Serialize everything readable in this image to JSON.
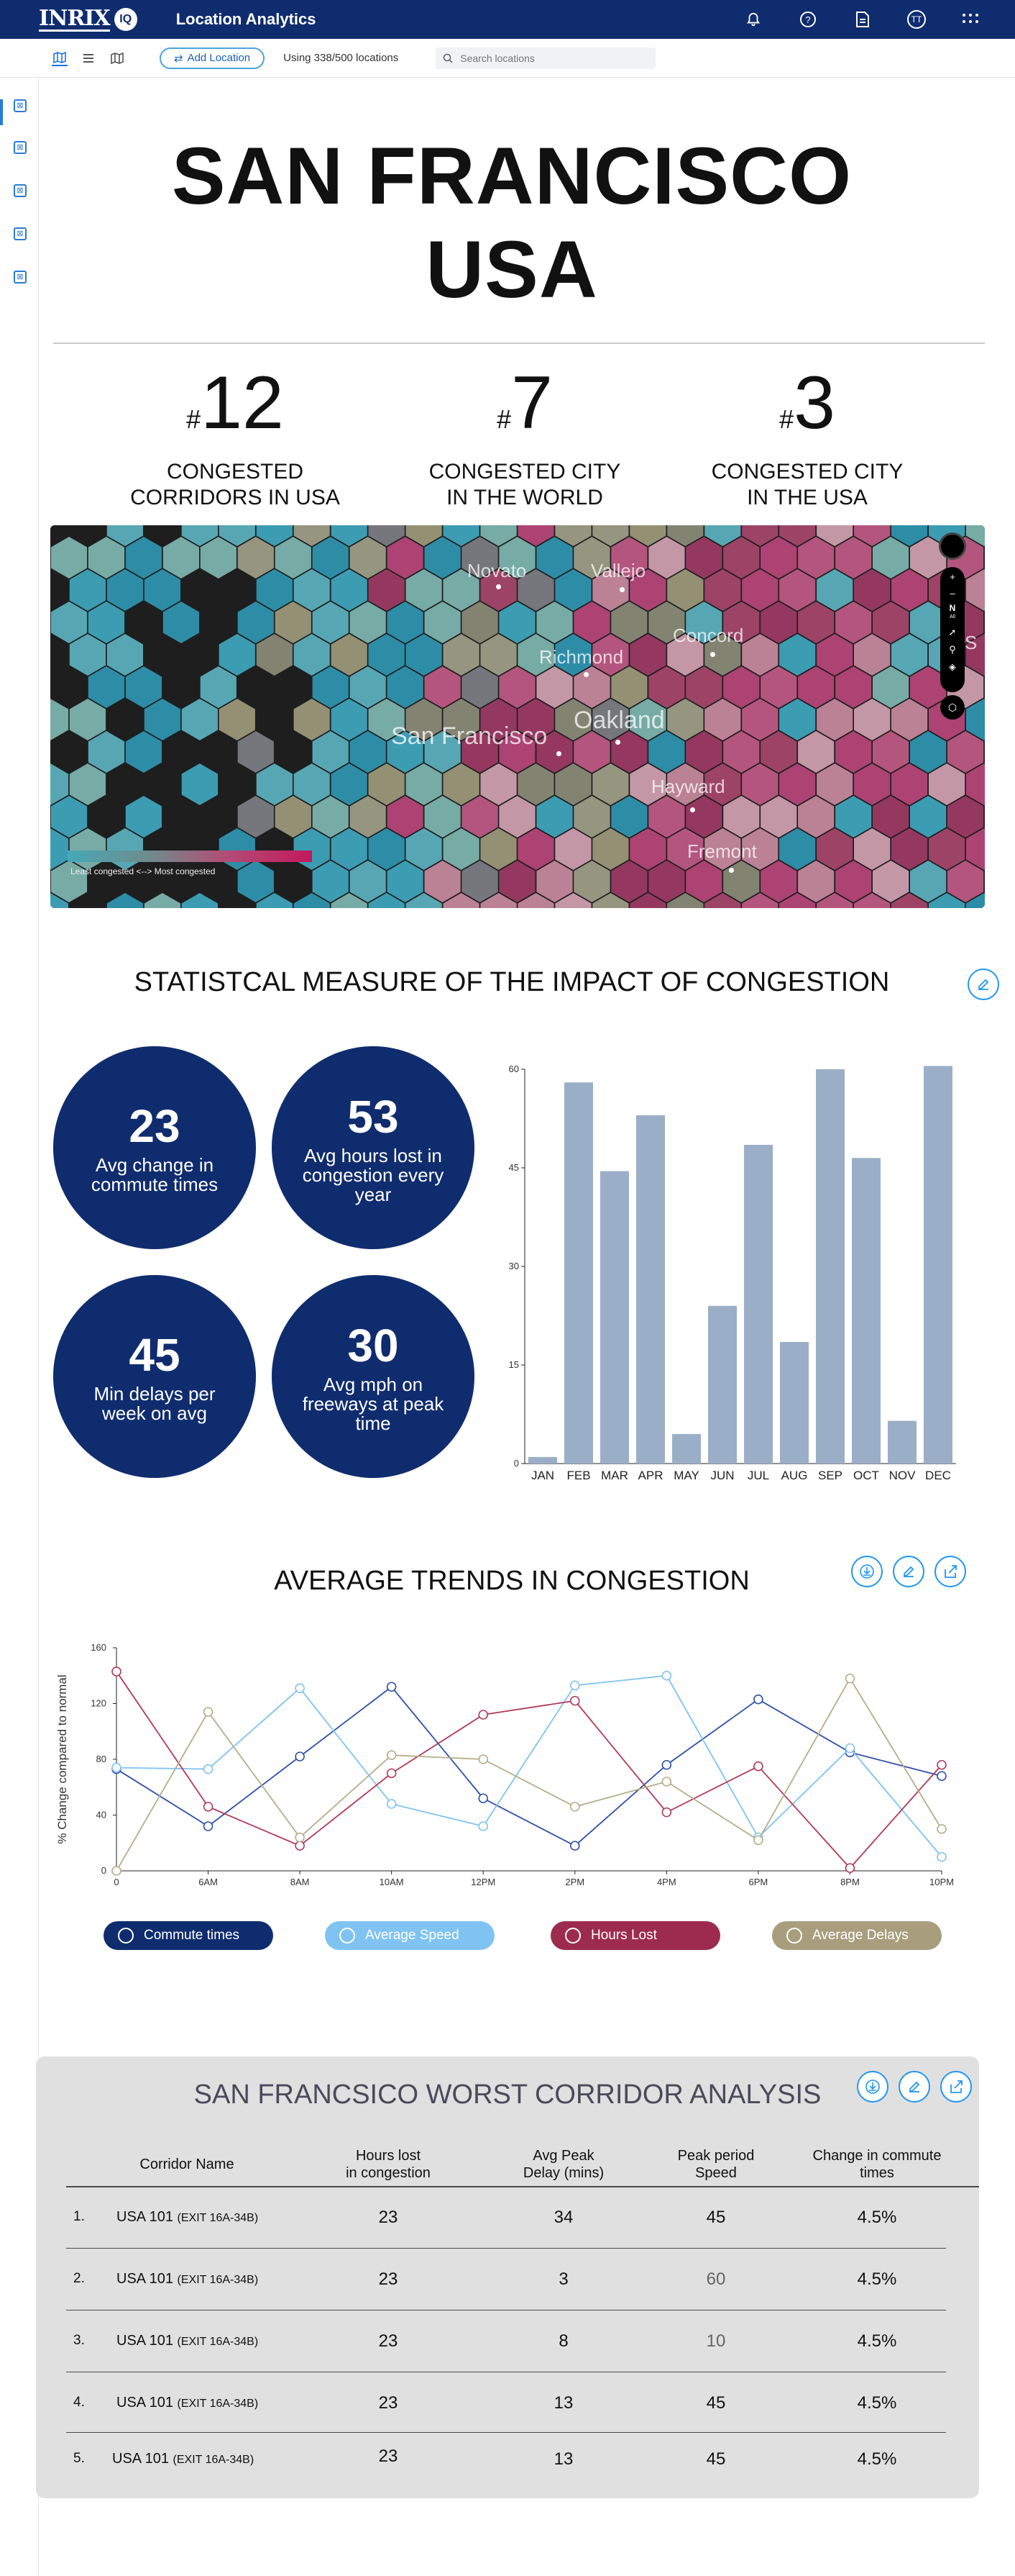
{
  "app": {
    "logo": "INRIX",
    "logo_badge": "IQ",
    "title": "Location Analytics",
    "user_initials": "TT"
  },
  "toolbar": {
    "add_location": "Add Location",
    "usage": "Using 338/500 locations",
    "search_placeholder": "Search locations"
  },
  "hero": {
    "title_line1": "SAN FRANCISCO",
    "title_line2": "USA"
  },
  "ranks": [
    {
      "num": "12",
      "label_line1": "CONGESTED",
      "label_line2": "CORRIDORS IN USA"
    },
    {
      "num": "7",
      "label_line1": "CONGESTED CITY",
      "label_line2": "IN THE WORLD"
    },
    {
      "num": "3",
      "label_line1": "CONGESTED CITY",
      "label_line2": "IN THE USA"
    }
  ],
  "map": {
    "cities": [
      "Novato",
      "Vallejo",
      "Concord",
      "Richmond",
      "San Francisco",
      "Oakland",
      "Hayward",
      "Fremont",
      "S"
    ],
    "legend": "Least congested <--> Most congested",
    "compass": "N",
    "compass_sub": "All"
  },
  "stats_section": {
    "title": "STATISTCAL MEASURE OF THE IMPACT OF CONGESTION",
    "stats": [
      {
        "value": "23",
        "label": "Avg change in commute times"
      },
      {
        "value": "53",
        "label": "Avg hours lost in congestion every year"
      },
      {
        "value": "45",
        "label": "Min delays per week on avg"
      },
      {
        "value": "30",
        "label": "Avg mph on freeways at peak time"
      }
    ]
  },
  "trends_section": {
    "title": "AVERAGE TRENDS IN CONGESTION",
    "legend": [
      "Commute times",
      "Average Speed",
      "Hours Lost",
      "Average Delays"
    ]
  },
  "table_section": {
    "title": "SAN FRANCSICO WORST CORRIDOR ANALYSIS",
    "headers": {
      "name": "Corridor Name",
      "hours_1": "Hours lost",
      "hours_2": "in congestion",
      "delay_1": "Avg Peak",
      "delay_2": "Delay (mins)",
      "speed_1": "Peak period",
      "speed_2": "Speed",
      "change_1": "Change in commute",
      "change_2": "times"
    },
    "rows": [
      {
        "idx": "1.",
        "name": "USA 101",
        "exit": "(EXIT 16A-34B)",
        "hours": "23",
        "delay": "34",
        "speed": "45",
        "change": "4.5%"
      },
      {
        "idx": "2.",
        "name": "USA 101",
        "exit": "(EXIT 16A-34B)",
        "hours": "23",
        "delay": "3",
        "speed": "60",
        "change": "4.5%"
      },
      {
        "idx": "3.",
        "name": "USA 101",
        "exit": "(EXIT 16A-34B)",
        "hours": "23",
        "delay": "8",
        "speed": "10",
        "change": "4.5%"
      },
      {
        "idx": "4.",
        "name": "USA 101",
        "exit": "(EXIT 16A-34B)",
        "hours": "23",
        "delay": "13",
        "speed": "45",
        "change": "4.5%"
      },
      {
        "idx": "5.",
        "name": "USA 101",
        "exit": "(EXIT 16A-34B)",
        "hours": "23",
        "delay": "13",
        "speed": "45",
        "change": "4.5%"
      }
    ]
  },
  "colors": {
    "navy": "#0f2c6e",
    "bar": "#9aafc7",
    "commute": "#2f4fa8",
    "speed": "#7fc3f2",
    "hours": "#b23a5a",
    "delays": "#b5ad8a"
  },
  "chart_data": [
    {
      "type": "bar",
      "categories": [
        "JAN",
        "FEB",
        "MAR",
        "APR",
        "MAY",
        "JUN",
        "JUL",
        "AUG",
        "SEP",
        "OCT",
        "NOV",
        "DEC"
      ],
      "values": [
        1,
        58,
        44.5,
        53,
        4.5,
        24,
        48.5,
        18.5,
        60,
        46.5,
        6.5,
        60.5
      ],
      "yticks": [
        0,
        15,
        30,
        45,
        60
      ],
      "ylim": [
        0,
        60
      ],
      "title": "",
      "xlabel": "",
      "ylabel": ""
    },
    {
      "type": "line",
      "x": [
        "0",
        "6AM",
        "8AM",
        "10AM",
        "12PM",
        "2PM",
        "4PM",
        "6PM",
        "8PM",
        "10PM"
      ],
      "ylabel": "% Change compared to normal",
      "ylim": [
        0,
        160
      ],
      "yticks": [
        0,
        40,
        80,
        120,
        160
      ],
      "series": [
        {
          "name": "Commute times",
          "values": [
            73,
            32,
            82,
            132,
            52,
            18,
            76,
            123,
            85,
            68
          ]
        },
        {
          "name": "Average Speed",
          "values": [
            74,
            73,
            131,
            48,
            32,
            133,
            140,
            24,
            88,
            10
          ]
        },
        {
          "name": "Hours Lost",
          "values": [
            143,
            46,
            18,
            70,
            112,
            122,
            42,
            75,
            2,
            76
          ]
        },
        {
          "name": "Average Delays",
          "values": [
            0,
            114,
            24,
            83,
            80,
            46,
            64,
            22,
            138,
            30
          ]
        }
      ]
    }
  ]
}
